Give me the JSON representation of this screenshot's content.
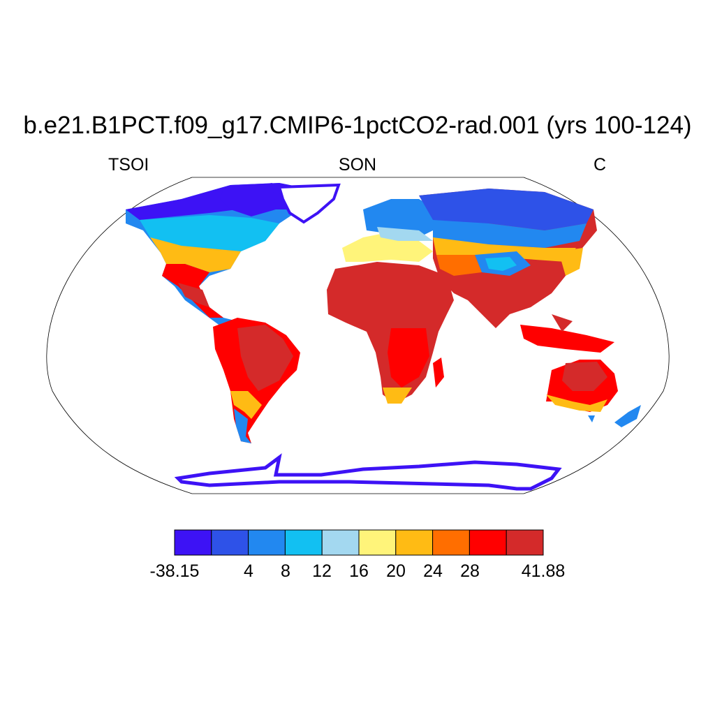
{
  "title": "b.e21.B1PCT.f09_g17.CMIP6-1pctCO2-rad.001 (yrs 100-124)",
  "left_label": "TSOI",
  "center_label": "SON",
  "right_label": "C",
  "colorbar": {
    "colors": [
      "#3d12f5",
      "#2e52e8",
      "#2288f0",
      "#12c0f2",
      "#a3d8f0",
      "#fff47a",
      "#ffbb14",
      "#ff6e00",
      "#ff0000",
      "#d42a2a"
    ],
    "tick_labels": [
      "-38.15",
      "4",
      "8",
      "12",
      "16",
      "20",
      "24",
      "28",
      "41.88"
    ]
  }
}
